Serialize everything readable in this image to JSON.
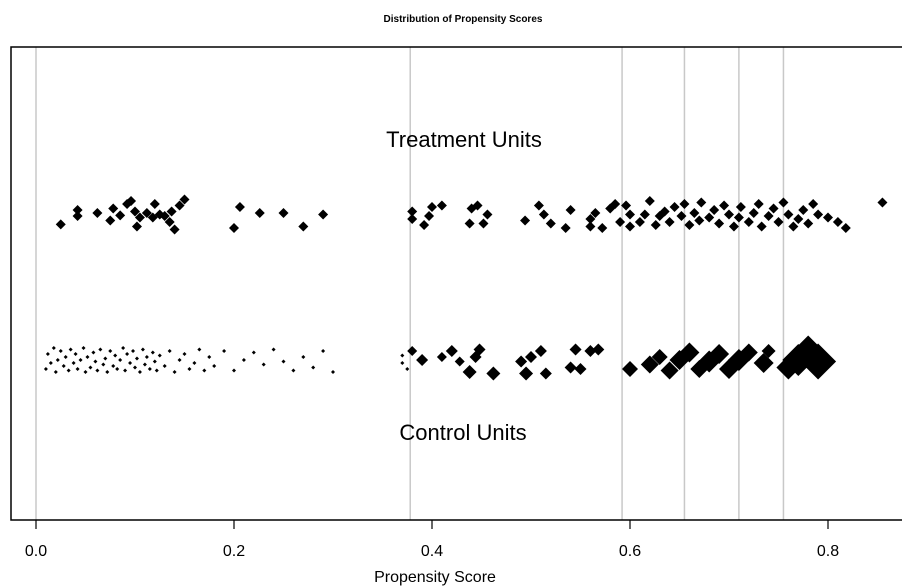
{
  "chart_data": {
    "type": "scatter",
    "title": "Distribution of Propensity Scores",
    "xlabel": "Propensity Score",
    "ylabel": "",
    "xlim": [
      -0.025,
      0.87
    ],
    "xticks": [
      {
        "value": 0.0,
        "label": "0.0"
      },
      {
        "value": 0.2,
        "label": "0.2"
      },
      {
        "value": 0.4,
        "label": "0.4"
      },
      {
        "value": 0.6,
        "label": "0.6"
      },
      {
        "value": 0.8,
        "label": "0.8"
      }
    ],
    "subclass_breaks": [
      0.0,
      0.378,
      0.592,
      0.655,
      0.71,
      0.755
    ],
    "group_labels": {
      "treatment": "Treatment Units",
      "control": "Control Units"
    },
    "grid": false,
    "marker": "diamond",
    "colors": {
      "marker": "#000000",
      "break_line": "#c8c8c8",
      "frame": "#000000"
    },
    "series": [
      {
        "name": "Treatment Units",
        "note_marker_size": "uniform",
        "points": [
          [
            0.025,
            0.38
          ],
          [
            0.042,
            0.1
          ],
          [
            0.042,
            -0.1
          ],
          [
            0.062,
            0.0
          ],
          [
            0.075,
            0.25
          ],
          [
            0.078,
            -0.15
          ],
          [
            0.085,
            0.08
          ],
          [
            0.092,
            -0.3
          ],
          [
            0.096,
            -0.4
          ],
          [
            0.1,
            -0.05
          ],
          [
            0.102,
            0.45
          ],
          [
            0.105,
            0.15
          ],
          [
            0.112,
            0.0
          ],
          [
            0.118,
            0.15
          ],
          [
            0.12,
            -0.3
          ],
          [
            0.125,
            0.05
          ],
          [
            0.13,
            0.1
          ],
          [
            0.135,
            0.3
          ],
          [
            0.137,
            -0.05
          ],
          [
            0.14,
            0.55
          ],
          [
            0.145,
            -0.25
          ],
          [
            0.15,
            -0.45
          ],
          [
            0.2,
            0.5
          ],
          [
            0.206,
            -0.2
          ],
          [
            0.226,
            0.0
          ],
          [
            0.25,
            0.0
          ],
          [
            0.27,
            0.45
          ],
          [
            0.29,
            0.05
          ],
          [
            0.38,
            0.2
          ],
          [
            0.38,
            -0.05
          ],
          [
            0.392,
            0.4
          ],
          [
            0.397,
            0.1
          ],
          [
            0.4,
            -0.2
          ],
          [
            0.41,
            -0.25
          ],
          [
            0.438,
            0.35
          ],
          [
            0.44,
            -0.15
          ],
          [
            0.446,
            -0.25
          ],
          [
            0.452,
            0.35
          ],
          [
            0.456,
            0.05
          ],
          [
            0.494,
            0.25
          ],
          [
            0.508,
            -0.25
          ],
          [
            0.513,
            0.05
          ],
          [
            0.52,
            0.35
          ],
          [
            0.535,
            0.5
          ],
          [
            0.54,
            -0.1
          ],
          [
            0.56,
            0.45
          ],
          [
            0.56,
            0.2
          ],
          [
            0.565,
            0.0
          ],
          [
            0.572,
            0.5
          ],
          [
            0.58,
            -0.15
          ],
          [
            0.585,
            -0.3
          ],
          [
            0.59,
            0.3
          ],
          [
            0.596,
            -0.25
          ],
          [
            0.6,
            0.05
          ],
          [
            0.6,
            0.45
          ],
          [
            0.61,
            0.3
          ],
          [
            0.615,
            0.05
          ],
          [
            0.62,
            -0.4
          ],
          [
            0.626,
            0.4
          ],
          [
            0.63,
            0.1
          ],
          [
            0.635,
            -0.05
          ],
          [
            0.64,
            0.3
          ],
          [
            0.645,
            -0.2
          ],
          [
            0.652,
            0.1
          ],
          [
            0.655,
            -0.3
          ],
          [
            0.66,
            0.4
          ],
          [
            0.665,
            0.0
          ],
          [
            0.67,
            0.25
          ],
          [
            0.672,
            -0.35
          ],
          [
            0.68,
            0.15
          ],
          [
            0.685,
            -0.1
          ],
          [
            0.69,
            0.35
          ],
          [
            0.695,
            -0.25
          ],
          [
            0.7,
            0.05
          ],
          [
            0.705,
            0.45
          ],
          [
            0.71,
            0.15
          ],
          [
            0.712,
            -0.2
          ],
          [
            0.72,
            0.3
          ],
          [
            0.725,
            0.0
          ],
          [
            0.73,
            -0.3
          ],
          [
            0.733,
            0.45
          ],
          [
            0.74,
            0.1
          ],
          [
            0.745,
            -0.15
          ],
          [
            0.75,
            0.3
          ],
          [
            0.755,
            -0.35
          ],
          [
            0.76,
            0.05
          ],
          [
            0.765,
            0.45
          ],
          [
            0.77,
            0.2
          ],
          [
            0.775,
            -0.1
          ],
          [
            0.78,
            0.35
          ],
          [
            0.785,
            -0.3
          ],
          [
            0.79,
            0.05
          ],
          [
            0.8,
            0.15
          ],
          [
            0.81,
            0.3
          ],
          [
            0.818,
            0.5
          ],
          [
            0.855,
            -0.35
          ]
        ]
      },
      {
        "name": "Control Units",
        "note_marker_size": "weighted",
        "points": [
          [
            0.01,
            0.3,
            2
          ],
          [
            0.012,
            -0.2,
            2
          ],
          [
            0.015,
            0.1,
            2
          ],
          [
            0.018,
            -0.4,
            2
          ],
          [
            0.02,
            0.4,
            2
          ],
          [
            0.022,
            0.0,
            2
          ],
          [
            0.025,
            -0.3,
            2
          ],
          [
            0.028,
            0.2,
            2
          ],
          [
            0.03,
            -0.1,
            2
          ],
          [
            0.033,
            0.35,
            2
          ],
          [
            0.035,
            -0.35,
            2
          ],
          [
            0.038,
            0.1,
            2
          ],
          [
            0.04,
            -0.2,
            2
          ],
          [
            0.042,
            0.3,
            2
          ],
          [
            0.045,
            0.0,
            2
          ],
          [
            0.048,
            -0.4,
            2
          ],
          [
            0.05,
            0.4,
            2
          ],
          [
            0.052,
            -0.1,
            2
          ],
          [
            0.055,
            0.25,
            2
          ],
          [
            0.058,
            -0.25,
            2
          ],
          [
            0.06,
            0.05,
            2
          ],
          [
            0.062,
            0.35,
            2
          ],
          [
            0.065,
            -0.35,
            2
          ],
          [
            0.068,
            0.15,
            2
          ],
          [
            0.07,
            -0.05,
            2
          ],
          [
            0.072,
            0.4,
            2
          ],
          [
            0.075,
            -0.3,
            2
          ],
          [
            0.078,
            0.2,
            2
          ],
          [
            0.08,
            -0.15,
            2
          ],
          [
            0.082,
            0.3,
            2
          ],
          [
            0.085,
            0.0,
            2
          ],
          [
            0.088,
            -0.4,
            2
          ],
          [
            0.09,
            0.35,
            2
          ],
          [
            0.092,
            -0.2,
            2
          ],
          [
            0.095,
            0.1,
            2
          ],
          [
            0.098,
            -0.3,
            2
          ],
          [
            0.1,
            0.25,
            2
          ],
          [
            0.102,
            -0.05,
            2
          ],
          [
            0.105,
            0.4,
            2
          ],
          [
            0.108,
            -0.35,
            2
          ],
          [
            0.11,
            0.15,
            2
          ],
          [
            0.112,
            -0.1,
            2
          ],
          [
            0.115,
            0.3,
            2
          ],
          [
            0.118,
            -0.25,
            2
          ],
          [
            0.12,
            0.05,
            2
          ],
          [
            0.122,
            0.35,
            2
          ],
          [
            0.125,
            -0.15,
            2
          ],
          [
            0.13,
            0.2,
            2
          ],
          [
            0.135,
            -0.3,
            2
          ],
          [
            0.14,
            0.4,
            2
          ],
          [
            0.145,
            0.0,
            2
          ],
          [
            0.15,
            -0.2,
            2
          ],
          [
            0.155,
            0.3,
            2
          ],
          [
            0.16,
            0.1,
            2
          ],
          [
            0.165,
            -0.35,
            2
          ],
          [
            0.17,
            0.35,
            2
          ],
          [
            0.175,
            -0.1,
            2
          ],
          [
            0.18,
            0.2,
            2
          ],
          [
            0.19,
            -0.3,
            2
          ],
          [
            0.2,
            0.35,
            2
          ],
          [
            0.21,
            0.0,
            2
          ],
          [
            0.22,
            -0.25,
            2
          ],
          [
            0.23,
            0.15,
            2
          ],
          [
            0.24,
            -0.35,
            2
          ],
          [
            0.25,
            0.05,
            2
          ],
          [
            0.26,
            0.35,
            2
          ],
          [
            0.27,
            -0.1,
            2
          ],
          [
            0.28,
            0.25,
            2
          ],
          [
            0.29,
            -0.3,
            2
          ],
          [
            0.3,
            0.4,
            2
          ],
          [
            0.37,
            0.1,
            2
          ],
          [
            0.37,
            -0.15,
            2
          ],
          [
            0.375,
            0.3,
            2
          ],
          [
            0.38,
            -0.3,
            5
          ],
          [
            0.39,
            0.0,
            6
          ],
          [
            0.41,
            -0.1,
            5
          ],
          [
            0.42,
            -0.3,
            6
          ],
          [
            0.428,
            0.05,
            5
          ],
          [
            0.438,
            0.4,
            7
          ],
          [
            0.444,
            -0.1,
            6
          ],
          [
            0.448,
            -0.35,
            6
          ],
          [
            0.462,
            0.45,
            7
          ],
          [
            0.49,
            0.05,
            6
          ],
          [
            0.495,
            0.45,
            7
          ],
          [
            0.5,
            -0.1,
            6
          ],
          [
            0.51,
            -0.3,
            6
          ],
          [
            0.515,
            0.45,
            6
          ],
          [
            0.54,
            0.25,
            6
          ],
          [
            0.545,
            -0.35,
            6
          ],
          [
            0.55,
            0.3,
            6
          ],
          [
            0.56,
            -0.3,
            6
          ],
          [
            0.568,
            -0.35,
            6
          ],
          [
            0.6,
            0.3,
            8
          ],
          [
            0.62,
            0.15,
            9
          ],
          [
            0.63,
            -0.1,
            8
          ],
          [
            0.64,
            0.35,
            9
          ],
          [
            0.65,
            0.0,
            10
          ],
          [
            0.66,
            -0.25,
            10
          ],
          [
            0.67,
            0.3,
            9
          ],
          [
            0.68,
            0.05,
            11
          ],
          [
            0.69,
            -0.2,
            10
          ],
          [
            0.7,
            0.3,
            10
          ],
          [
            0.71,
            0.0,
            11
          ],
          [
            0.72,
            -0.25,
            9
          ],
          [
            0.735,
            0.1,
            10
          ],
          [
            0.74,
            -0.3,
            7
          ],
          [
            0.76,
            0.25,
            12
          ],
          [
            0.77,
            0.0,
            16
          ],
          [
            0.78,
            -0.35,
            14
          ],
          [
            0.79,
            0.05,
            18
          ]
        ]
      }
    ]
  }
}
